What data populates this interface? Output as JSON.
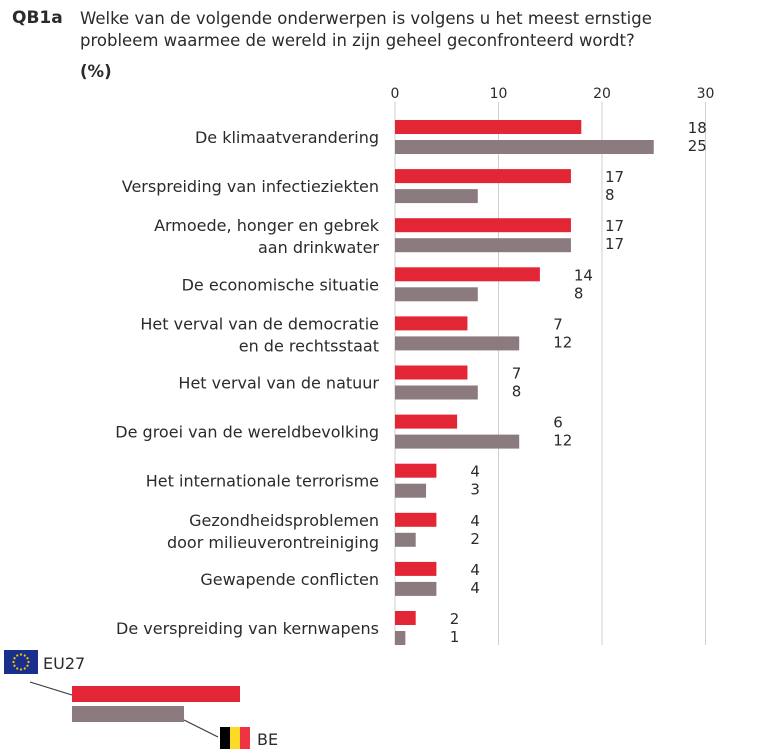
{
  "question": {
    "id": "QB1a",
    "text": "Welke van de volgende onderwerpen is volgens u het meest ernstige probleem waarmee de wereld in zijn geheel geconfronteerd wordt?",
    "unit": "(%)"
  },
  "colors": {
    "eu27": "#e32636",
    "be": "#8c7b7e",
    "grid": "#cfcfcf"
  },
  "legend": {
    "eu27_label": "EU27",
    "be_label": "BE"
  },
  "chart_data": {
    "type": "bar",
    "orientation": "horizontal",
    "title": "Welke van de volgende onderwerpen is volgens u het meest ernstige probleem waarmee de wereld in zijn geheel geconfronteerd wordt? (%)",
    "xlim": [
      0,
      30
    ],
    "xticks": [
      0,
      10,
      20,
      30
    ],
    "categories": [
      [
        "De klimaatverandering"
      ],
      [
        "Verspreiding van infectieziekten"
      ],
      [
        "Armoede, honger en gebrek",
        "aan drinkwater"
      ],
      [
        "De economische situatie"
      ],
      [
        "Het verval van de democratie",
        "en de rechtsstaat"
      ],
      [
        "Het verval van de natuur"
      ],
      [
        "De groei van de wereldbevolking"
      ],
      [
        "Het internationale terrorisme"
      ],
      [
        "Gezondheidsproblemen",
        "door milieuverontreiniging"
      ],
      [
        "Gewapende conflicten"
      ],
      [
        "De verspreiding van kernwapens"
      ]
    ],
    "series": [
      {
        "name": "EU27",
        "values": [
          18,
          17,
          17,
          14,
          7,
          7,
          6,
          4,
          4,
          4,
          2
        ]
      },
      {
        "name": "BE",
        "values": [
          25,
          8,
          17,
          8,
          12,
          8,
          12,
          3,
          2,
          4,
          1
        ]
      }
    ]
  }
}
